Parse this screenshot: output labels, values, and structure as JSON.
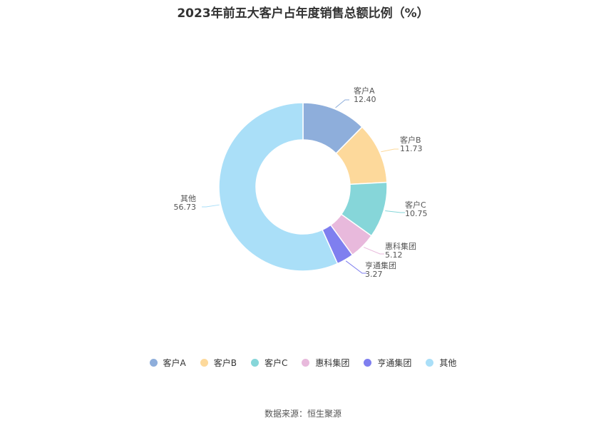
{
  "chart_data": {
    "type": "pie",
    "title": "2023年前五大客户占年度销售总额比例（%）",
    "categories": [
      "客户A",
      "客户B",
      "客户C",
      "惠科集团",
      "亨通集团",
      "其他"
    ],
    "values": [
      12.4,
      11.73,
      10.75,
      5.12,
      3.27,
      56.73
    ],
    "value_labels": [
      "12.40",
      "11.73",
      "10.75",
      "5.12",
      "3.27",
      "56.73"
    ],
    "colors": [
      "#8eaedb",
      "#fdd99b",
      "#86d6d9",
      "#e8b9dc",
      "#7f7fef",
      "#aadff8"
    ],
    "donut": true,
    "legend_position": "bottom"
  },
  "source": "数据来源：恒生聚源"
}
